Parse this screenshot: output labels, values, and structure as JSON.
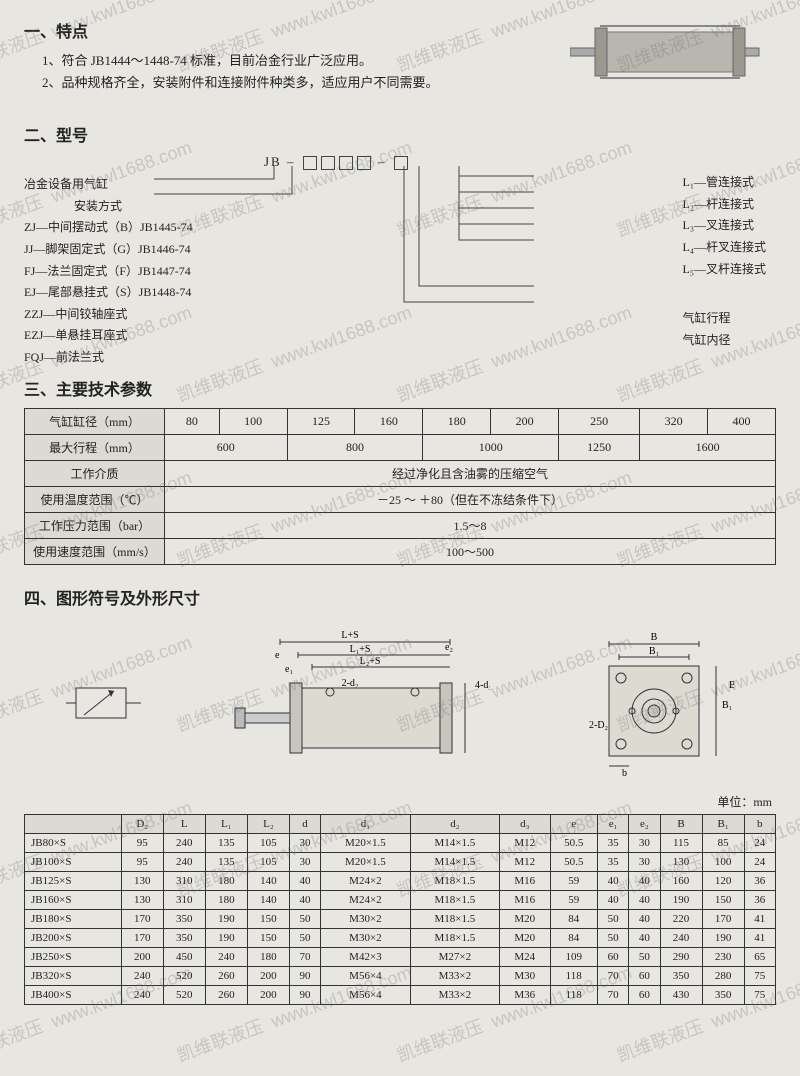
{
  "section1": {
    "title": "一、特点",
    "bullets": [
      "1、符合 JB1444～1448-74 标准，目前冶金行业广泛应用。",
      "2、品种规格齐全，安装附件和连接附件种类多，适应用户不同需要。"
    ]
  },
  "section2": {
    "title": "二、型号",
    "code_prefix": "JB",
    "left_labels": [
      "冶金设备用气缸",
      "安装方式",
      "ZJ—中间摆动式（B）JB1445-74",
      "JJ—脚架固定式（G）JB1446-74",
      "FJ—法兰固定式（F）JB1447-74",
      "EJ—尾部悬挂式（S）JB1448-74",
      "ZZJ—中间铰轴座式",
      "EZJ—单悬挂耳座式",
      "FQJ—前法兰式"
    ],
    "right_labels": [
      "L₁—管连接式",
      "L₂—杆连接式",
      "L₃—叉连接式",
      "L₄—杆叉连接式",
      "L₅—叉杆连接式",
      "气缸行程",
      "气缸内径"
    ]
  },
  "section3": {
    "title": "三、主要技术参数",
    "rows": [
      {
        "label": "气缸缸径（mm）",
        "cells": [
          "80",
          "100",
          "125",
          "160",
          "180",
          "200",
          "250",
          "320",
          "400"
        ]
      },
      {
        "label": "最大行程（mm）",
        "cells": [
          "600",
          "800",
          "1000",
          "1250",
          "1600"
        ],
        "spans": [
          2,
          2,
          2,
          1,
          2
        ]
      },
      {
        "label": "工作介质",
        "cells": [
          "经过净化且含油雾的压缩空气"
        ],
        "spans": [
          9
        ]
      },
      {
        "label": "使用温度范围（℃）",
        "cells": [
          "－25 ～ ＋80（但在不冻结条件下）"
        ],
        "spans": [
          9
        ]
      },
      {
        "label": "工作压力范围（bar）",
        "cells": [
          "1.5～8"
        ],
        "spans": [
          9
        ]
      },
      {
        "label": "使用速度范围（mm/s）",
        "cells": [
          "100～500"
        ],
        "spans": [
          9
        ]
      }
    ]
  },
  "section4": {
    "title": "四、图形符号及外形尺寸",
    "unit": "单位：mm",
    "dim_headers": [
      "",
      "D₂",
      "L",
      "L₁",
      "L₂",
      "d",
      "d₁",
      "d₂",
      "d₃",
      "e",
      "e₁",
      "e₂",
      "B",
      "B₁",
      "b"
    ],
    "dim_rows": [
      [
        "JB80×S",
        "95",
        "240",
        "135",
        "105",
        "30",
        "M20×1.5",
        "M14×1.5",
        "M12",
        "50.5",
        "35",
        "30",
        "115",
        "85",
        "24"
      ],
      [
        "JB100×S",
        "95",
        "240",
        "135",
        "105",
        "30",
        "M20×1.5",
        "M14×1.5",
        "M12",
        "50.5",
        "35",
        "30",
        "130",
        "100",
        "24"
      ],
      [
        "JB125×S",
        "130",
        "310",
        "180",
        "140",
        "40",
        "M24×2",
        "M18×1.5",
        "M16",
        "59",
        "40",
        "40",
        "160",
        "120",
        "36"
      ],
      [
        "JB160×S",
        "130",
        "310",
        "180",
        "140",
        "40",
        "M24×2",
        "M18×1.5",
        "M16",
        "59",
        "40",
        "40",
        "190",
        "150",
        "36"
      ],
      [
        "JB180×S",
        "170",
        "350",
        "190",
        "150",
        "50",
        "M30×2",
        "M18×1.5",
        "M20",
        "84",
        "50",
        "40",
        "220",
        "170",
        "41"
      ],
      [
        "JB200×S",
        "170",
        "350",
        "190",
        "150",
        "50",
        "M30×2",
        "M18×1.5",
        "M20",
        "84",
        "50",
        "40",
        "240",
        "190",
        "41"
      ],
      [
        "JB250×S",
        "200",
        "450",
        "240",
        "180",
        "70",
        "M42×3",
        "M27×2",
        "M24",
        "109",
        "60",
        "50",
        "290",
        "230",
        "65"
      ],
      [
        "JB320×S",
        "240",
        "520",
        "260",
        "200",
        "90",
        "M56×4",
        "M33×2",
        "M30",
        "118",
        "70",
        "60",
        "350",
        "280",
        "75"
      ],
      [
        "JB400×S",
        "240",
        "520",
        "260",
        "200",
        "90",
        "M56×4",
        "M33×2",
        "M36",
        "118",
        "70",
        "60",
        "430",
        "350",
        "75"
      ]
    ],
    "diag_labels": {
      "ls": "L+S",
      "l1s": "L₁+S",
      "l2s": "L₂+S",
      "2d2": "2-d₂",
      "4d3": "4-d₃",
      "B": "B",
      "B1": "B₁",
      "b": "b",
      "2D2": "2-D₂",
      "e": "e",
      "e1": "e₁",
      "e2": "e₂"
    }
  },
  "watermark": {
    "text1": "凯维联液压",
    "text2": "www.kwl1688.com"
  }
}
